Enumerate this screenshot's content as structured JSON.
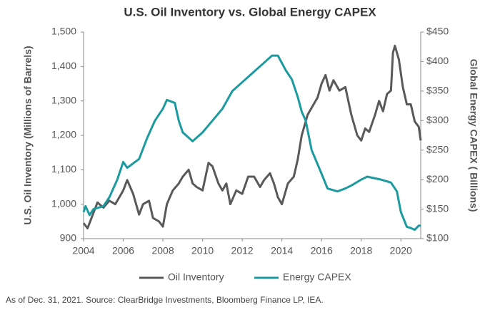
{
  "chart_data": {
    "type": "line",
    "title": "U.S. Oil Inventory vs. Global Energy CAPEX",
    "y_label": "U.S. Oil Inventory (Millions of Barrels)",
    "y2_label": "Global Energy CAPEX ( Billions)",
    "footnote": "As of Dec. 31, 2021. Source: ClearBridge Investments, Bloomberg Finance LP, IEA.",
    "legend": "bottom",
    "xlim": [
      2004,
      2021
    ],
    "xticks": [
      2004,
      2006,
      2008,
      2010,
      2012,
      2014,
      2016,
      2018,
      2020
    ],
    "ylim": [
      900,
      1500
    ],
    "yticks": [
      900,
      {
        "value": 1000,
        "label": "1,000"
      },
      {
        "value": 1100,
        "label": "1,100"
      },
      {
        "value": 1200,
        "label": "1,200"
      },
      {
        "value": 1300,
        "label": "1,300"
      },
      {
        "value": 1400,
        "label": "1,400"
      },
      {
        "value": 1500,
        "label": "1,500"
      }
    ],
    "y2lim": [
      100,
      450
    ],
    "y2ticks": [
      {
        "value": 100,
        "label": "$100"
      },
      {
        "value": 150,
        "label": "$150"
      },
      {
        "value": 200,
        "label": "$200"
      },
      {
        "value": 250,
        "label": "$250"
      },
      {
        "value": 300,
        "label": "$300"
      },
      {
        "value": 350,
        "label": "$350"
      },
      {
        "value": 400,
        "label": "$400"
      },
      {
        "value": 450,
        "label": "$450"
      }
    ],
    "series": [
      {
        "name": "Oil Inventory",
        "color": "#595959",
        "x": [
          2004.0,
          2004.2,
          2004.5,
          2004.7,
          2005.0,
          2005.3,
          2005.6,
          2006.0,
          2006.2,
          2006.5,
          2006.8,
          2007.0,
          2007.3,
          2007.5,
          2007.8,
          2008.0,
          2008.2,
          2008.5,
          2008.8,
          2009.0,
          2009.3,
          2009.5,
          2009.7,
          2010.0,
          2010.3,
          2010.5,
          2010.8,
          2011.0,
          2011.2,
          2011.4,
          2011.7,
          2012.0,
          2012.3,
          2012.6,
          2012.9,
          2013.1,
          2013.4,
          2013.6,
          2013.8,
          2014.0,
          2014.3,
          2014.6,
          2014.8,
          2015.0,
          2015.3,
          2015.6,
          2015.8,
          2016.0,
          2016.2,
          2016.4,
          2016.6,
          2016.9,
          2017.2,
          2017.5,
          2017.8,
          2018.0,
          2018.2,
          2018.4,
          2018.7,
          2018.9,
          2019.1,
          2019.3,
          2019.5,
          2019.6,
          2019.7,
          2019.9,
          2020.1,
          2020.3,
          2020.5,
          2020.7,
          2020.9,
          2021.0
        ],
        "values": [
          945,
          930,
          975,
          1005,
          990,
          1010,
          1000,
          1040,
          1070,
          1030,
          970,
          1000,
          1010,
          960,
          950,
          935,
          1000,
          1040,
          1060,
          1080,
          1100,
          1060,
          1050,
          1040,
          1120,
          1110,
          1060,
          1040,
          1060,
          1000,
          1040,
          1030,
          1080,
          1080,
          1050,
          1070,
          1090,
          1060,
          1020,
          1000,
          1060,
          1080,
          1130,
          1200,
          1260,
          1290,
          1310,
          1350,
          1375,
          1330,
          1360,
          1330,
          1340,
          1260,
          1200,
          1185,
          1220,
          1210,
          1260,
          1300,
          1270,
          1320,
          1330,
          1440,
          1460,
          1420,
          1340,
          1290,
          1290,
          1240,
          1225,
          1185
        ]
      },
      {
        "name": "Energy CAPEX",
        "color": "#1b9aa0",
        "axis": "y2",
        "x": [
          2004.0,
          2004.1,
          2004.3,
          2004.5,
          2005.0,
          2005.3,
          2005.7,
          2006.0,
          2006.2,
          2006.8,
          2007.2,
          2007.6,
          2008.0,
          2008.2,
          2008.6,
          2008.8,
          2009.0,
          2009.5,
          2010.0,
          2010.5,
          2011.0,
          2011.5,
          2012.0,
          2012.5,
          2013.0,
          2013.5,
          2013.8,
          2014.2,
          2014.5,
          2014.8,
          2015.0,
          2015.2,
          2015.5,
          2016.0,
          2016.3,
          2016.8,
          2017.2,
          2017.5,
          2018.0,
          2018.3,
          2019.0,
          2019.5,
          2019.8,
          2020.0,
          2020.3,
          2020.5,
          2020.7,
          2020.9,
          2021.0
        ],
        "values": [
          145,
          155,
          140,
          150,
          155,
          170,
          200,
          230,
          220,
          235,
          270,
          300,
          320,
          335,
          330,
          300,
          280,
          265,
          280,
          300,
          320,
          350,
          365,
          380,
          395,
          410,
          410,
          385,
          370,
          340,
          315,
          300,
          250,
          210,
          185,
          180,
          185,
          190,
          200,
          205,
          200,
          195,
          180,
          145,
          120,
          118,
          115,
          122,
          122
        ]
      }
    ]
  }
}
